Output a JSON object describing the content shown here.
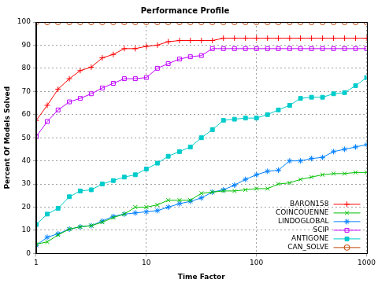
{
  "chart_data": {
    "type": "line",
    "title": "Performance Profile",
    "x_label": "Time Factor",
    "y_label": "Percent Of Models Solved",
    "log": "x",
    "grid": true,
    "legend": "lower right",
    "xlim": [
      1,
      1000
    ],
    "xticks": [
      1,
      10,
      100,
      1000
    ],
    "ylim": [
      0,
      100
    ],
    "yticks": [
      0,
      10,
      20,
      30,
      40,
      50,
      60,
      70,
      80,
      90,
      100
    ],
    "x": [
      1,
      1.26,
      1.58,
      2,
      2.51,
      3.16,
      3.98,
      5.01,
      6.31,
      7.94,
      10,
      12.6,
      15.8,
      20,
      25.1,
      31.6,
      39.8,
      50.1,
      63.1,
      79.4,
      100,
      126,
      158,
      200,
      251,
      316,
      398,
      501,
      631,
      794,
      1000
    ],
    "series": [
      {
        "name": "BARON158",
        "color": "#ff0000",
        "marker": "plus",
        "values": [
          57.5,
          64,
          71,
          75.5,
          79,
          80.5,
          84.5,
          86,
          88.5,
          88.5,
          89.5,
          90,
          91.5,
          92,
          92,
          92,
          92,
          93,
          93,
          93,
          93,
          93,
          93,
          93,
          93,
          93,
          93,
          93,
          93,
          93,
          93
        ]
      },
      {
        "name": "COINCOUENNE",
        "color": "#00c000",
        "marker": "x",
        "values": [
          4,
          5,
          8,
          10.5,
          11.5,
          12,
          13.5,
          15.5,
          17,
          20,
          20,
          21,
          23,
          23,
          23,
          26,
          26.5,
          27,
          27,
          27.5,
          28,
          28,
          30,
          30.5,
          32,
          33,
          34,
          34.5,
          34.5,
          35,
          35
        ]
      },
      {
        "name": "LINDOGLOBAL",
        "color": "#0080ff",
        "marker": "star",
        "values": [
          3.5,
          7,
          8.5,
          10.5,
          11.5,
          12,
          14,
          16,
          17,
          17.5,
          18,
          18.5,
          20,
          21.5,
          22.5,
          24,
          26.5,
          27.5,
          29.5,
          32,
          34,
          35.5,
          36,
          40,
          40,
          41,
          41.5,
          44,
          45,
          46,
          47
        ]
      },
      {
        "name": "SCIP",
        "color": "#c000ff",
        "marker": "square",
        "values": [
          50.5,
          57,
          62,
          65.5,
          67,
          69,
          71.5,
          73.5,
          75.5,
          75.5,
          76,
          80,
          82,
          84,
          85,
          85.5,
          88.5,
          88.5,
          88.5,
          88.5,
          88.5,
          88.5,
          88.5,
          88.5,
          88.5,
          88.5,
          88.5,
          88.5,
          88.5,
          88.5,
          88.5
        ]
      },
      {
        "name": "ANTIGONE",
        "color": "#00cccc",
        "marker": "filled_square",
        "values": [
          12.5,
          17,
          19.5,
          24.5,
          27,
          27.5,
          30,
          31.5,
          33,
          34,
          36.5,
          39,
          42,
          44,
          46,
          50,
          53.5,
          57.5,
          58,
          58.5,
          58.5,
          60,
          62,
          64,
          67,
          67.5,
          67.5,
          69,
          69.5,
          72.5,
          76
        ]
      },
      {
        "name": "CAN_SOLVE",
        "color": "#c04000",
        "marker": "circle",
        "values": [
          100,
          100,
          100,
          100,
          100,
          100,
          100,
          100,
          100,
          100,
          100,
          100,
          100,
          100,
          100,
          100,
          100,
          100,
          100,
          100,
          100,
          100,
          100,
          100,
          100,
          100,
          100,
          100,
          100,
          100,
          100
        ]
      }
    ]
  }
}
